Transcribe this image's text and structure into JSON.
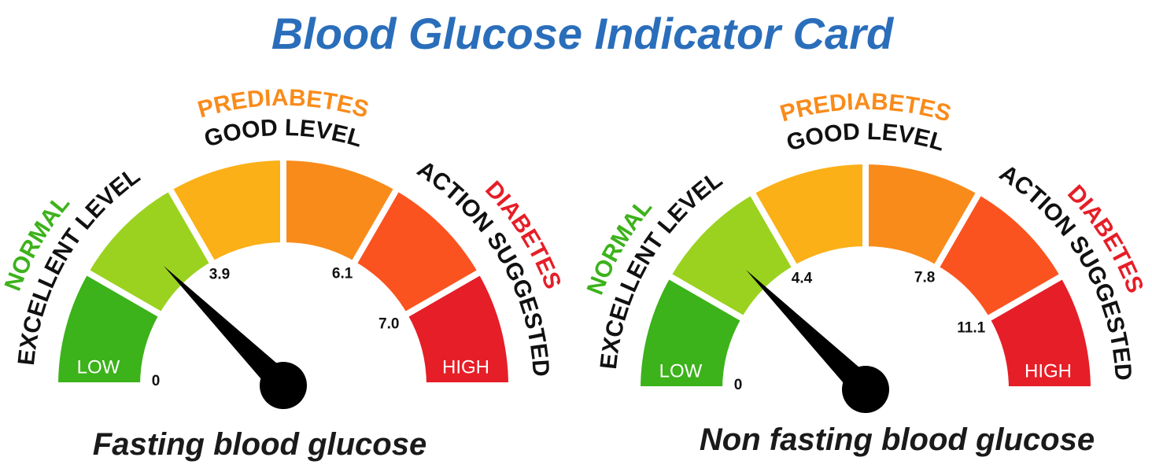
{
  "title": "Blood Glucose Indicator Card",
  "gauges": [
    {
      "caption": "Fasting blood glucose",
      "labels": {
        "top_category": "PREDIABETES",
        "top_level": "GOOD LEVEL",
        "left_category": "NORMAL",
        "left_level": "EXCELLENT LEVEL",
        "right_category": "DIABETES",
        "right_level": "ACTION SUGGESTED",
        "low": "LOW",
        "high": "HIGH"
      },
      "thresholds": [
        "0",
        "3.9",
        "6.1",
        "7.0"
      ]
    },
    {
      "caption": "Non fasting blood glucose",
      "labels": {
        "top_category": "PREDIABETES",
        "top_level": "GOOD LEVEL",
        "left_category": "NORMAL",
        "left_level": "EXCELLENT LEVEL",
        "right_category": "DIABETES",
        "right_level": "ACTION SUGGESTED",
        "low": "LOW",
        "high": "HIGH"
      },
      "thresholds": [
        "0",
        "4.4",
        "7.8",
        "11.1"
      ]
    }
  ]
}
